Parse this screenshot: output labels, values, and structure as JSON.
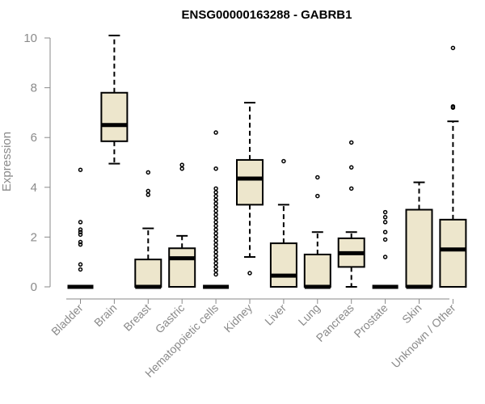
{
  "chart_data": {
    "type": "boxplot",
    "title": "ENSG00000163288 - GABRB1",
    "xlabel": "",
    "ylabel": "Expression",
    "ylim": [
      0,
      10
    ],
    "yticks": [
      0,
      2,
      4,
      6,
      8,
      10
    ],
    "categories": [
      "Bladder",
      "Brain",
      "Breast",
      "Gastric",
      "Hematopoietic cells",
      "Kidney",
      "Liver",
      "Lung",
      "Pancreas",
      "Prostate",
      "Skin",
      "Unknown / Other"
    ],
    "box_fill": "#ede6cc",
    "series": [
      {
        "category": "Bladder",
        "whisker_low": 0,
        "q1": 0,
        "median": 0,
        "q3": 0,
        "whisker_high": 0,
        "outliers": [
          0.7,
          0.9,
          1.7,
          1.8,
          2.1,
          2.2,
          2.3,
          2.6,
          4.7
        ]
      },
      {
        "category": "Brain",
        "whisker_low": 4.95,
        "q1": 5.85,
        "median": 6.5,
        "q3": 7.8,
        "whisker_high": 10.1,
        "outliers": []
      },
      {
        "category": "Breast",
        "whisker_low": 0,
        "q1": 0,
        "median": 0,
        "q3": 1.1,
        "whisker_high": 2.35,
        "outliers": [
          3.7,
          3.85,
          4.6
        ]
      },
      {
        "category": "Gastric",
        "whisker_low": 0,
        "q1": 0,
        "median": 1.15,
        "q3": 1.55,
        "whisker_high": 2.05,
        "outliers": [
          4.75,
          4.9
        ]
      },
      {
        "category": "Hematopoietic cells",
        "whisker_low": 0,
        "q1": 0,
        "median": 0,
        "q3": 0,
        "whisker_high": 0,
        "outliers": [
          0.5,
          0.65,
          0.8,
          0.95,
          1.1,
          1.25,
          1.4,
          1.55,
          1.7,
          1.85,
          2.0,
          2.15,
          2.3,
          2.45,
          2.6,
          2.75,
          2.9,
          3.05,
          3.2,
          3.35,
          3.5,
          3.65,
          3.8,
          3.95,
          4.75,
          6.2
        ]
      },
      {
        "category": "Kidney",
        "whisker_low": 1.2,
        "q1": 3.3,
        "median": 4.35,
        "q3": 5.1,
        "whisker_high": 7.4,
        "outliers": [
          0.55
        ]
      },
      {
        "category": "Liver",
        "whisker_low": 0,
        "q1": 0,
        "median": 0.45,
        "q3": 1.75,
        "whisker_high": 3.3,
        "outliers": [
          5.05
        ]
      },
      {
        "category": "Lung",
        "whisker_low": 0,
        "q1": 0,
        "median": 0,
        "q3": 1.3,
        "whisker_high": 2.2,
        "outliers": [
          3.65,
          4.4
        ]
      },
      {
        "category": "Pancreas",
        "whisker_low": 0,
        "q1": 0.8,
        "median": 1.35,
        "q3": 1.95,
        "whisker_high": 2.2,
        "outliers": [
          3.95,
          4.8,
          5.8
        ]
      },
      {
        "category": "Prostate",
        "whisker_low": 0,
        "q1": 0,
        "median": 0,
        "q3": 0,
        "whisker_high": 0,
        "outliers": [
          1.2,
          1.9,
          2.2,
          2.6,
          2.8,
          3.0
        ]
      },
      {
        "category": "Skin",
        "whisker_low": 0,
        "q1": 0,
        "median": 0,
        "q3": 3.1,
        "whisker_high": 4.2,
        "outliers": []
      },
      {
        "category": "Unknown / Other",
        "whisker_low": 0,
        "q1": 0,
        "median": 1.5,
        "q3": 2.7,
        "whisker_high": 6.65,
        "outliers": [
          7.2,
          7.25,
          9.6
        ]
      }
    ]
  }
}
